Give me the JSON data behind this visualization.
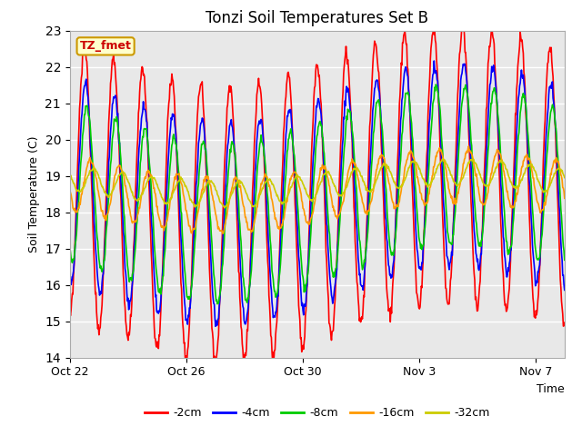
{
  "title": "Tonzi Soil Temperatures Set B",
  "xlabel": "Time",
  "ylabel": "Soil Temperature (C)",
  "ylim": [
    14.0,
    23.0
  ],
  "yticks": [
    14.0,
    15.0,
    16.0,
    17.0,
    18.0,
    19.0,
    20.0,
    21.0,
    22.0,
    23.0
  ],
  "xtick_labels": [
    "Oct 22",
    "Oct 26",
    "Oct 30",
    "Nov 3",
    "Nov 7"
  ],
  "xtick_pos": [
    0,
    4,
    8,
    12,
    16
  ],
  "annotation_label": "TZ_fmet",
  "annotation_color": "#cc0000",
  "annotation_bg": "#ffffcc",
  "annotation_border": "#cc9900",
  "series_colors": [
    "#ff0000",
    "#0000ff",
    "#00cc00",
    "#ff9900",
    "#cccc00"
  ],
  "series_labels": [
    "-2cm",
    "-4cm",
    "-8cm",
    "-16cm",
    "-32cm"
  ],
  "plot_bg_color": "#e8e8e8",
  "n_days": 17,
  "samples_per_day": 48
}
